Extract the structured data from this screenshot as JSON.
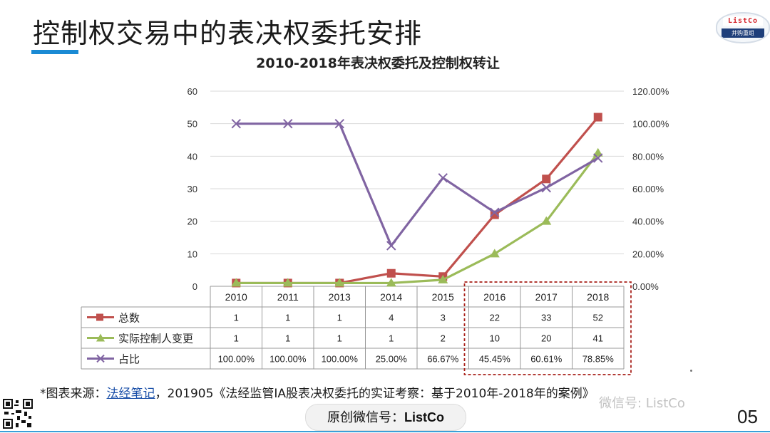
{
  "slide": {
    "title": "控制权交易中的表决权委托安排",
    "logo_top": "ListCo",
    "logo_bottom": "并购重组",
    "source_prefix": "*图表来源：",
    "source_link": "法经笔记",
    "source_suffix": "，201905《法经监管IA股表决权委托的实证考察：基于2010年-2018年的案例》",
    "badge_prefix": "原创微信号：",
    "badge_id": "ListCo",
    "watermark": "微信号: ListCo",
    "page_number": "05"
  },
  "chart_data": {
    "type": "line",
    "title": "2010-2018年表决权委托及控制权转让",
    "categories": [
      "2010",
      "2011",
      "2013",
      "2014",
      "2015",
      "2016",
      "2017",
      "2018"
    ],
    "ylim": [
      0,
      60
    ],
    "yticks": [
      0,
      10,
      20,
      30,
      40,
      50,
      60
    ],
    "y2lim": [
      0,
      1.2
    ],
    "y2ticks": [
      "0.00%",
      "20.00%",
      "40.00%",
      "60.00%",
      "80.00%",
      "100.00%",
      "120.00%"
    ],
    "grid": true,
    "legend": "data-table",
    "highlight_categories": [
      "2016",
      "2017",
      "2018"
    ],
    "series": [
      {
        "name": "总数",
        "axis": "left",
        "color": "#c0504d",
        "marker": "square",
        "values": [
          1,
          1,
          1,
          4,
          3,
          22,
          33,
          52
        ],
        "labels": [
          "1",
          "1",
          "1",
          "4",
          "3",
          "22",
          "33",
          "52"
        ]
      },
      {
        "name": "实际控制人变更",
        "axis": "left",
        "color": "#9bbb59",
        "marker": "triangle",
        "values": [
          1,
          1,
          1,
          1,
          2,
          10,
          20,
          41
        ],
        "labels": [
          "1",
          "1",
          "1",
          "1",
          "2",
          "10",
          "20",
          "41"
        ]
      },
      {
        "name": "占比",
        "axis": "right",
        "color": "#8064a2",
        "marker": "x",
        "values": [
          1.0,
          1.0,
          1.0,
          0.25,
          0.6667,
          0.4545,
          0.6061,
          0.7885
        ],
        "labels": [
          "100.00%",
          "100.00%",
          "100.00%",
          "25.00%",
          "66.67%",
          "45.45%",
          "60.61%",
          "78.85%"
        ]
      }
    ]
  }
}
